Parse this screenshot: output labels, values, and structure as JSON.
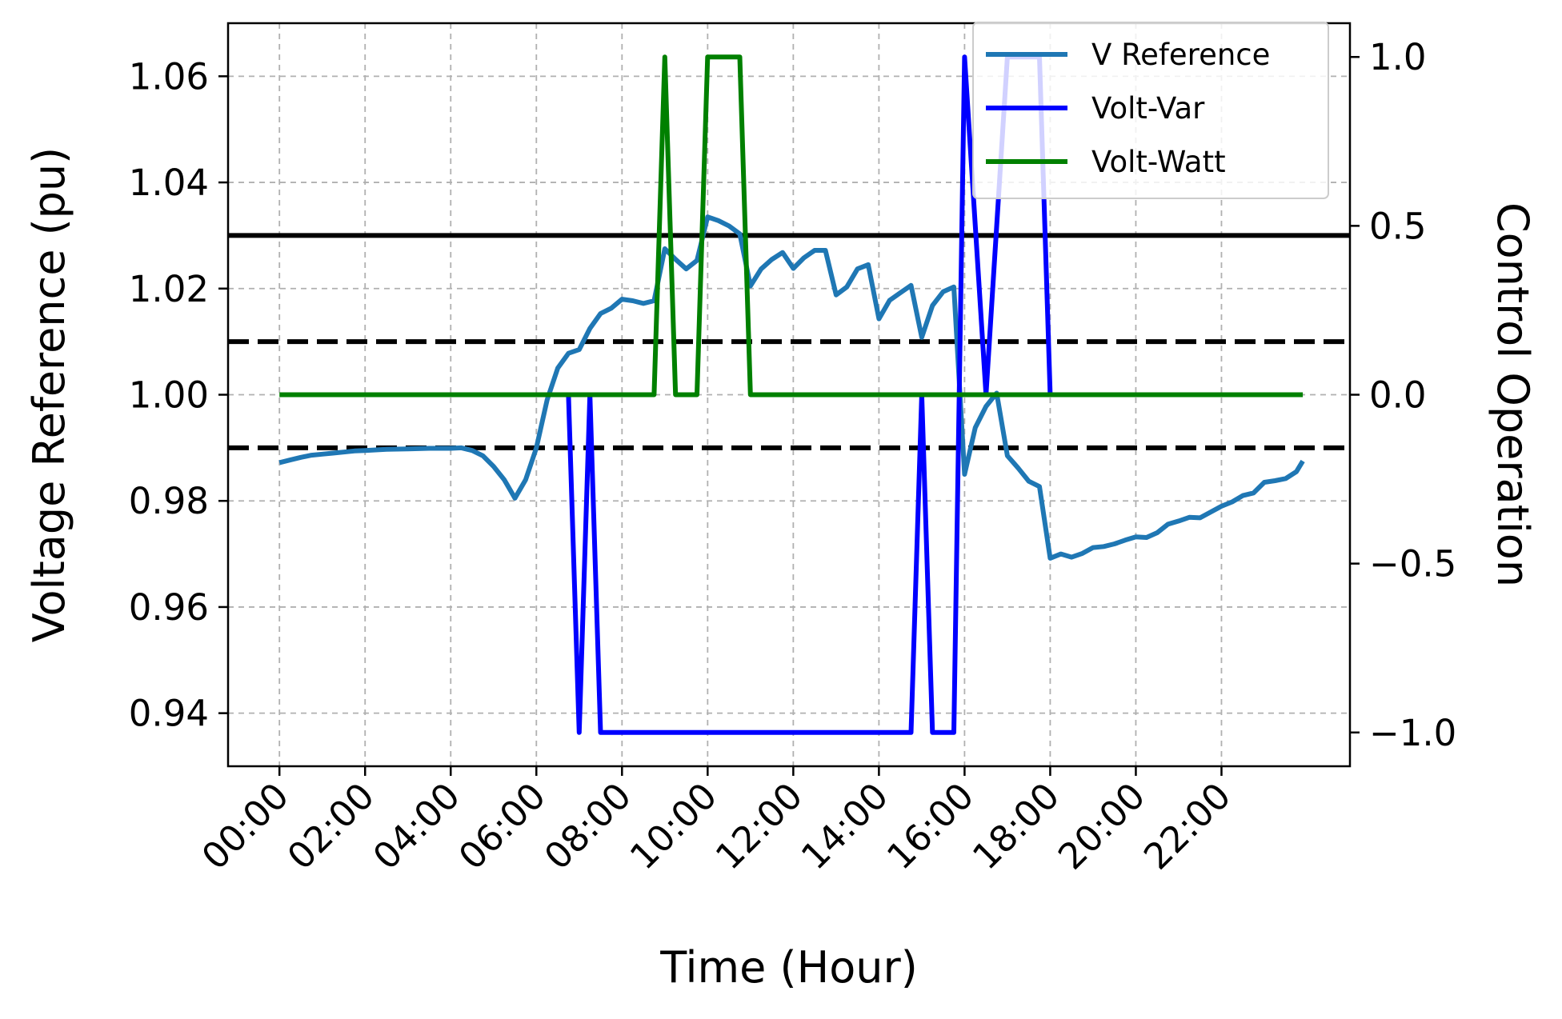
{
  "chart_data": {
    "type": "line",
    "xlabel": "Time (Hour)",
    "ylabel_left": "Voltage Reference (pu)",
    "ylabel_right": "Control Operation",
    "x_unit": "hours",
    "x_ticks": [
      0,
      2,
      4,
      6,
      8,
      10,
      12,
      14,
      16,
      18,
      20,
      22
    ],
    "x_tick_labels": [
      "00:00",
      "02:00",
      "04:00",
      "06:00",
      "08:00",
      "10:00",
      "12:00",
      "14:00",
      "16:00",
      "18:00",
      "20:00",
      "22:00"
    ],
    "xlim": [
      -1.2,
      25
    ],
    "ylim_left": [
      0.93,
      1.07
    ],
    "ylim_right": [
      -1.1,
      1.1
    ],
    "y_ticks_left": [
      0.94,
      0.96,
      0.98,
      1.0,
      1.02,
      1.04,
      1.06
    ],
    "y_tick_labels_left": [
      "0.94",
      "0.96",
      "0.98",
      "1.00",
      "1.02",
      "1.04",
      "1.06"
    ],
    "y_ticks_right": [
      -1.0,
      -0.5,
      0.0,
      0.5,
      1.0
    ],
    "y_tick_labels_right": [
      "−1.0",
      "−0.5",
      "0.0",
      "0.5",
      "1.0"
    ],
    "grid": true,
    "legend_position": "top-right",
    "reference_lines": [
      {
        "y": 1.03,
        "style": "solid",
        "color": "#000000"
      },
      {
        "y": 1.01,
        "style": "dashed",
        "color": "#000000"
      },
      {
        "y": 0.99,
        "style": "dashed",
        "color": "#000000"
      }
    ],
    "series": [
      {
        "name": "V Reference",
        "axis": "left",
        "color": "#1f77b4",
        "points": [
          [
            0,
            0.9872
          ],
          [
            0.25,
            0.9877
          ],
          [
            0.5,
            0.9882
          ],
          [
            0.75,
            0.9886
          ],
          [
            1,
            0.9888
          ],
          [
            1.25,
            0.989
          ],
          [
            1.5,
            0.9892
          ],
          [
            1.75,
            0.9894
          ],
          [
            2,
            0.9895
          ],
          [
            2.5,
            0.9897
          ],
          [
            3,
            0.9898
          ],
          [
            3.5,
            0.9899
          ],
          [
            4,
            0.9899
          ],
          [
            4.25,
            0.99
          ],
          [
            4.5,
            0.9895
          ],
          [
            4.75,
            0.9885
          ],
          [
            5,
            0.9865
          ],
          [
            5.25,
            0.984
          ],
          [
            5.5,
            0.9805
          ],
          [
            5.75,
            0.984
          ],
          [
            6,
            0.99
          ],
          [
            6.25,
            0.999
          ],
          [
            6.5,
            1.005
          ],
          [
            6.75,
            1.0078
          ],
          [
            7,
            1.0085
          ],
          [
            7.25,
            1.0125
          ],
          [
            7.5,
            1.0153
          ],
          [
            7.75,
            1.0163
          ],
          [
            8,
            1.018
          ],
          [
            8.25,
            1.0177
          ],
          [
            8.5,
            1.0172
          ],
          [
            8.75,
            1.0177
          ],
          [
            9,
            1.0275
          ],
          [
            9.25,
            1.0255
          ],
          [
            9.5,
            1.0237
          ],
          [
            9.75,
            1.0253
          ],
          [
            10,
            1.0335
          ],
          [
            10.25,
            1.0328
          ],
          [
            10.5,
            1.0318
          ],
          [
            10.75,
            1.0303
          ],
          [
            11,
            1.0205
          ],
          [
            11.25,
            1.0237
          ],
          [
            11.5,
            1.0255
          ],
          [
            11.75,
            1.0268
          ],
          [
            12,
            1.0238
          ],
          [
            12.25,
            1.0258
          ],
          [
            12.5,
            1.0272
          ],
          [
            12.75,
            1.0272
          ],
          [
            13,
            1.0188
          ],
          [
            13.25,
            1.0203
          ],
          [
            13.5,
            1.0237
          ],
          [
            13.75,
            1.0245
          ],
          [
            14,
            1.0143
          ],
          [
            14.25,
            1.0178
          ],
          [
            14.5,
            1.0192
          ],
          [
            14.75,
            1.0206
          ],
          [
            15,
            1.0108
          ],
          [
            15.25,
            1.0168
          ],
          [
            15.5,
            1.0194
          ],
          [
            15.75,
            1.0203
          ],
          [
            16,
            0.985
          ],
          [
            16.25,
            0.9938
          ],
          [
            16.5,
            0.9978
          ],
          [
            16.75,
            1.0003
          ],
          [
            17,
            0.9885
          ],
          [
            17.25,
            0.9862
          ],
          [
            17.5,
            0.9837
          ],
          [
            17.75,
            0.9827
          ],
          [
            18,
            0.9692
          ],
          [
            18.25,
            0.97
          ],
          [
            18.5,
            0.9694
          ],
          [
            18.75,
            0.9701
          ],
          [
            19,
            0.9712
          ],
          [
            19.25,
            0.9714
          ],
          [
            19.5,
            0.9719
          ],
          [
            19.75,
            0.9726
          ],
          [
            20,
            0.9732
          ],
          [
            20.25,
            0.9731
          ],
          [
            20.5,
            0.974
          ],
          [
            20.75,
            0.9756
          ],
          [
            21,
            0.9762
          ],
          [
            21.25,
            0.9769
          ],
          [
            21.5,
            0.9768
          ],
          [
            21.75,
            0.9779
          ],
          [
            22,
            0.979
          ],
          [
            22.25,
            0.9798
          ],
          [
            22.5,
            0.981
          ],
          [
            22.75,
            0.9815
          ],
          [
            23,
            0.9835
          ],
          [
            23.25,
            0.9838
          ],
          [
            23.5,
            0.9842
          ],
          [
            23.75,
            0.9855
          ],
          [
            23.9,
            0.9875
          ]
        ]
      },
      {
        "name": "Volt-Var",
        "axis": "right",
        "color": "#0000ff",
        "points": [
          [
            6.75,
            0.0
          ],
          [
            7.0,
            -1.0
          ],
          [
            7.25,
            0.0
          ],
          [
            7.5,
            -1.0
          ],
          [
            14.75,
            -1.0
          ],
          [
            15.0,
            0.0
          ],
          [
            15.25,
            -1.0
          ],
          [
            15.75,
            -1.0
          ],
          [
            16.0,
            1.0
          ],
          [
            16.5,
            0.0
          ],
          [
            17.0,
            1.0
          ],
          [
            17.75,
            1.0
          ],
          [
            18.0,
            0.0
          ]
        ]
      },
      {
        "name": "Volt-Watt",
        "axis": "right",
        "color": "#008000",
        "points": [
          [
            0,
            0.0
          ],
          [
            8.75,
            0.0
          ],
          [
            9.0,
            1.0
          ],
          [
            9.25,
            0.0
          ],
          [
            9.75,
            0.0
          ],
          [
            10.0,
            1.0
          ],
          [
            10.75,
            1.0
          ],
          [
            11.0,
            0.0
          ],
          [
            23.9,
            0.0
          ]
        ]
      }
    ]
  }
}
